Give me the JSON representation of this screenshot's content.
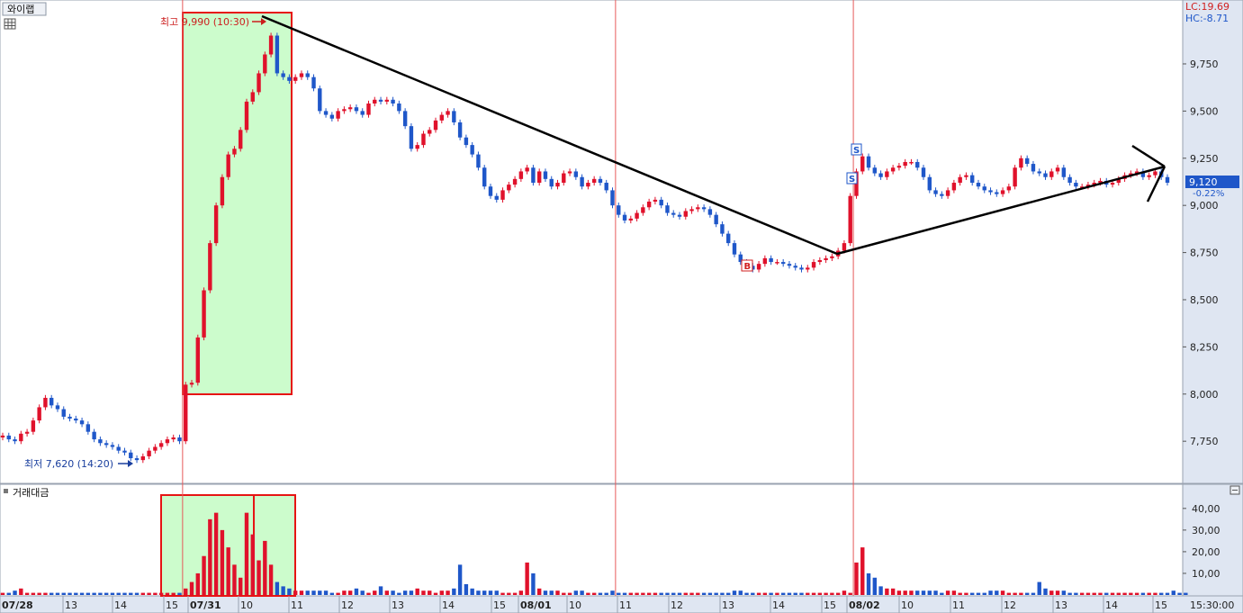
{
  "stock_name": "와이랩",
  "price_panel": {
    "lc_text": "LC:19.69",
    "hc_text": "HC:-8.71",
    "current_price_text": "9,120",
    "current_change_text": "-0.22%",
    "high_label": "최고 9,990 (10:30)",
    "low_label": "최저 7,620 (14:20)",
    "buy_marker": "B",
    "sell_marker": "S",
    "y_ticks": [
      "9,750",
      "9,500",
      "9,250",
      "9,000",
      "8,750",
      "8,500",
      "8,250",
      "8,000",
      "7,750"
    ]
  },
  "volume_panel": {
    "title": "거래대금",
    "y_ticks": [
      "40,00",
      "30,00",
      "20,00",
      "10,00"
    ]
  },
  "x_axis": {
    "labels": [
      "07/28",
      "13",
      "14",
      "15",
      "07/31",
      "10",
      "11",
      "12",
      "13",
      "14",
      "15",
      "08/01",
      "10",
      "11",
      "12",
      "13",
      "14",
      "15",
      "08/02",
      "10",
      "11",
      "12",
      "13",
      "14",
      "15"
    ],
    "time_label": "15:30:00"
  },
  "colors": {
    "up": "#e0112b",
    "down": "#1f57c9",
    "highlight_fill": "#ccfccc",
    "highlight_border": "#e61414",
    "day_separator": "#e65a5a",
    "trendline": "#000000",
    "axis_bg": "#dfe6f2"
  },
  "chart_data": [
    {
      "type": "line",
      "title": "",
      "ylim": [
        7560,
        10060
      ],
      "day_separators": [
        "07/31",
        "08/01",
        "08/02"
      ],
      "series": [
        {
          "values": [
            7780,
            7760,
            7750,
            7790,
            7800,
            7860,
            7930,
            7980,
            7940,
            7920,
            7880,
            7870,
            7860,
            7840,
            7800,
            7760,
            7740,
            7730,
            7720,
            7700,
            7690,
            7660,
            7650,
            7670,
            7700,
            7720,
            7740,
            7760,
            7770,
            7750,
            8050,
            8060,
            8300,
            8550,
            8800,
            9000,
            9150,
            9270,
            9300,
            9400,
            9550,
            9600,
            9700,
            9800,
            9900,
            9700,
            9680,
            9660,
            9680,
            9700,
            9680,
            9620,
            9500,
            9480,
            9460,
            9500,
            9510,
            9520,
            9500,
            9480,
            9540,
            9560,
            9550,
            9560,
            9540,
            9500,
            9420,
            9300,
            9320,
            9380,
            9400,
            9450,
            9480,
            9500,
            9440,
            9360,
            9320,
            9270,
            9200,
            9100,
            9050,
            9030,
            9080,
            9110,
            9140,
            9180,
            9200,
            9120,
            9180,
            9140,
            9100,
            9120,
            9170,
            9180,
            9150,
            9100,
            9120,
            9140,
            9120,
            9080,
            9000,
            8950,
            8920,
            8930,
            8960,
            8990,
            9020,
            9030,
            9000,
            8960,
            8950,
            8940,
            8970,
            8980,
            8990,
            8980,
            8950,
            8900,
            8850,
            8800,
            8740,
            8700,
            8680,
            8660,
            8690,
            8720,
            8700,
            8700,
            8690,
            8680,
            8670,
            8660,
            8670,
            8700,
            8710,
            8720,
            8730,
            8760,
            8800,
            9050,
            9180,
            9260,
            9200,
            9170,
            9150,
            9180,
            9200,
            9210,
            9230,
            9230,
            9200,
            9150,
            9080,
            9060,
            9050,
            9080,
            9120,
            9150,
            9160,
            9120,
            9100,
            9080,
            9070,
            9060,
            9080,
            9100,
            9200,
            9250,
            9220,
            9180,
            9170,
            9150,
            9180,
            9200,
            9150,
            9120,
            9100,
            9100,
            9110,
            9120,
            9130,
            9110,
            9120,
            9140,
            9160,
            9170,
            9180,
            9150,
            9160,
            9180,
            9150,
            9120
          ]
        }
      ],
      "annotations": [
        "최고 9,990 (10:30)",
        "최저 7,620 (14:20)",
        "B",
        "S",
        "S"
      ]
    },
    {
      "type": "bar",
      "title": "거래대금",
      "ylim": [
        0,
        47
      ],
      "values": [
        1,
        1,
        2,
        3,
        1,
        1,
        1,
        1,
        1,
        1,
        1,
        1,
        1,
        1,
        1,
        1,
        1,
        1,
        1,
        1,
        1,
        1,
        1,
        1,
        1,
        1,
        1,
        1,
        1,
        1,
        3,
        6,
        10,
        18,
        35,
        38,
        30,
        22,
        14,
        8,
        38,
        28,
        16,
        25,
        14,
        6,
        4,
        3,
        2,
        2,
        2,
        2,
        2,
        2,
        1,
        1,
        2,
        2,
        3,
        2,
        1,
        2,
        4,
        2,
        2,
        1,
        2,
        2,
        3,
        2,
        2,
        1,
        2,
        2,
        3,
        14,
        5,
        3,
        2,
        2,
        2,
        2,
        1,
        1,
        1,
        2,
        15,
        10,
        3,
        2,
        2,
        2,
        1,
        1,
        2,
        2,
        1,
        1,
        1,
        1,
        2,
        1,
        1,
        1,
        1,
        1,
        1,
        1,
        1,
        1,
        1,
        1,
        1,
        1,
        1,
        1,
        1,
        1,
        1,
        1,
        2,
        2,
        1,
        1,
        1,
        1,
        1,
        1,
        1,
        1,
        1,
        1,
        1,
        1,
        1,
        1,
        1,
        1,
        2,
        1,
        15,
        22,
        10,
        8,
        4,
        3,
        3,
        2,
        2,
        2,
        2,
        2,
        2,
        2,
        1,
        2,
        2,
        1,
        1,
        1,
        1,
        1,
        2,
        2,
        2,
        1,
        1,
        1,
        1,
        1,
        6,
        3,
        2,
        2,
        2,
        1,
        1,
        1,
        1,
        1,
        1,
        1,
        1,
        1,
        1,
        1,
        1,
        1,
        1,
        1,
        1,
        1,
        2,
        1,
        1
      ]
    }
  ]
}
